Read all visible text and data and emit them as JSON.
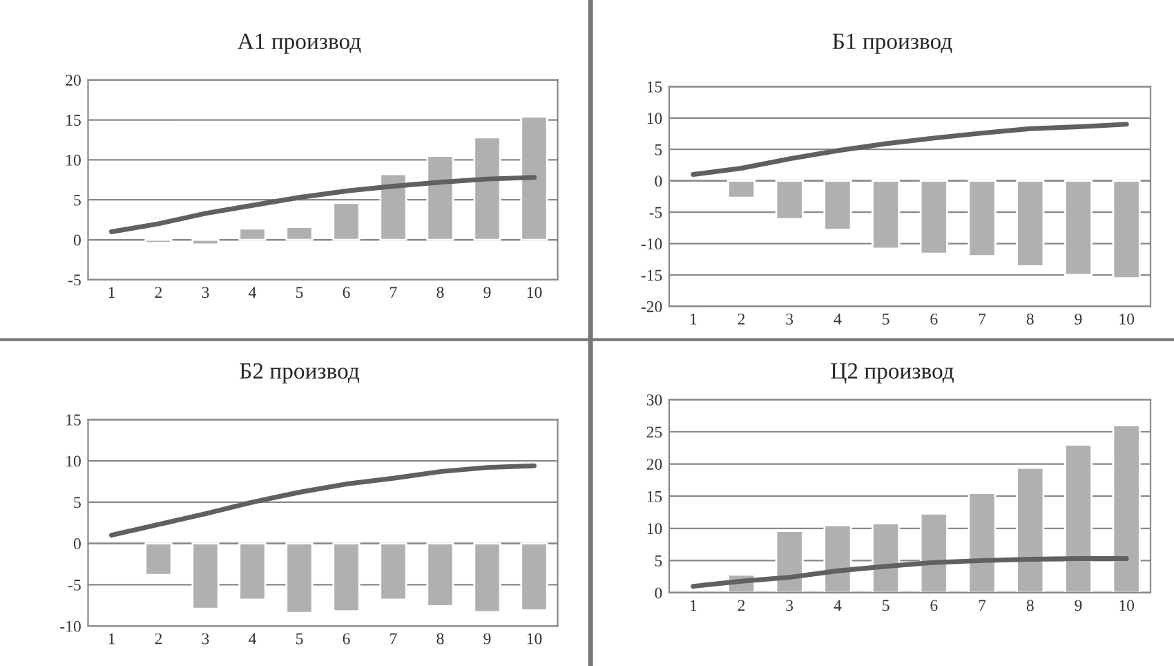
{
  "chart_data": [
    {
      "type": "bar",
      "title": "А1 производ",
      "categories": [
        "1",
        "2",
        "3",
        "4",
        "5",
        "6",
        "7",
        "8",
        "9",
        "10"
      ],
      "ylim": [
        -5,
        20
      ],
      "yticks": [
        -5,
        0,
        5,
        10,
        15,
        20
      ],
      "grid": "y",
      "series": [
        {
          "color": "#b0b0b0",
          "values": [
            null,
            -0.4,
            -0.6,
            1.4,
            1.6,
            4.6,
            8.2,
            10.5,
            12.8,
            15.4
          ]
        },
        {
          "type": "line",
          "color": "#606060",
          "values": [
            1,
            2,
            3.3,
            4.3,
            5.3,
            6.1,
            6.7,
            7.2,
            7.6,
            7.8
          ]
        }
      ]
    },
    {
      "type": "bar",
      "title": "Б1 производ",
      "categories": [
        "1",
        "2",
        "3",
        "4",
        "5",
        "6",
        "7",
        "8",
        "9",
        "10"
      ],
      "ylim": [
        -20,
        15
      ],
      "yticks": [
        -20,
        -15,
        -10,
        -5,
        0,
        5,
        10,
        15
      ],
      "grid": "y",
      "series": [
        {
          "color": "#b0b0b0",
          "values": [
            null,
            -2.7,
            -6.1,
            -7.8,
            -10.8,
            -11.6,
            -12,
            -13.6,
            -15,
            -15.5
          ]
        },
        {
          "type": "line",
          "color": "#606060",
          "values": [
            1,
            2,
            3.5,
            4.8,
            5.9,
            6.8,
            7.6,
            8.3,
            8.6,
            9
          ]
        }
      ]
    },
    {
      "type": "bar",
      "title": "Б2 производ",
      "categories": [
        "1",
        "2",
        "3",
        "4",
        "5",
        "6",
        "7",
        "8",
        "9",
        "10"
      ],
      "ylim": [
        -10,
        15
      ],
      "yticks": [
        -10,
        -5,
        0,
        5,
        10,
        15
      ],
      "grid": "y",
      "series": [
        {
          "color": "#b0b0b0",
          "values": [
            null,
            -3.8,
            -7.9,
            -6.8,
            -8.4,
            -8.2,
            -6.8,
            -7.6,
            -8.3,
            -8.1
          ]
        },
        {
          "type": "line",
          "color": "#606060",
          "values": [
            1,
            2.3,
            3.6,
            5,
            6.2,
            7.2,
            7.9,
            8.7,
            9.2,
            9.4
          ]
        }
      ]
    },
    {
      "type": "bar",
      "title": "Ц2 производ",
      "categories": [
        "1",
        "2",
        "3",
        "4",
        "5",
        "6",
        "7",
        "8",
        "9",
        "10"
      ],
      "ylim": [
        0,
        30
      ],
      "yticks": [
        0,
        5,
        10,
        15,
        20,
        25,
        30
      ],
      "grid": "y",
      "series": [
        {
          "color": "#b0b0b0",
          "values": [
            null,
            2.8,
            9.6,
            10.5,
            10.8,
            12.3,
            15.5,
            19.4,
            23,
            26
          ]
        },
        {
          "type": "line",
          "color": "#606060",
          "values": [
            1,
            1.8,
            2.4,
            3.4,
            4.1,
            4.7,
            5.0,
            5.2,
            5.3,
            5.3
          ]
        }
      ]
    }
  ]
}
